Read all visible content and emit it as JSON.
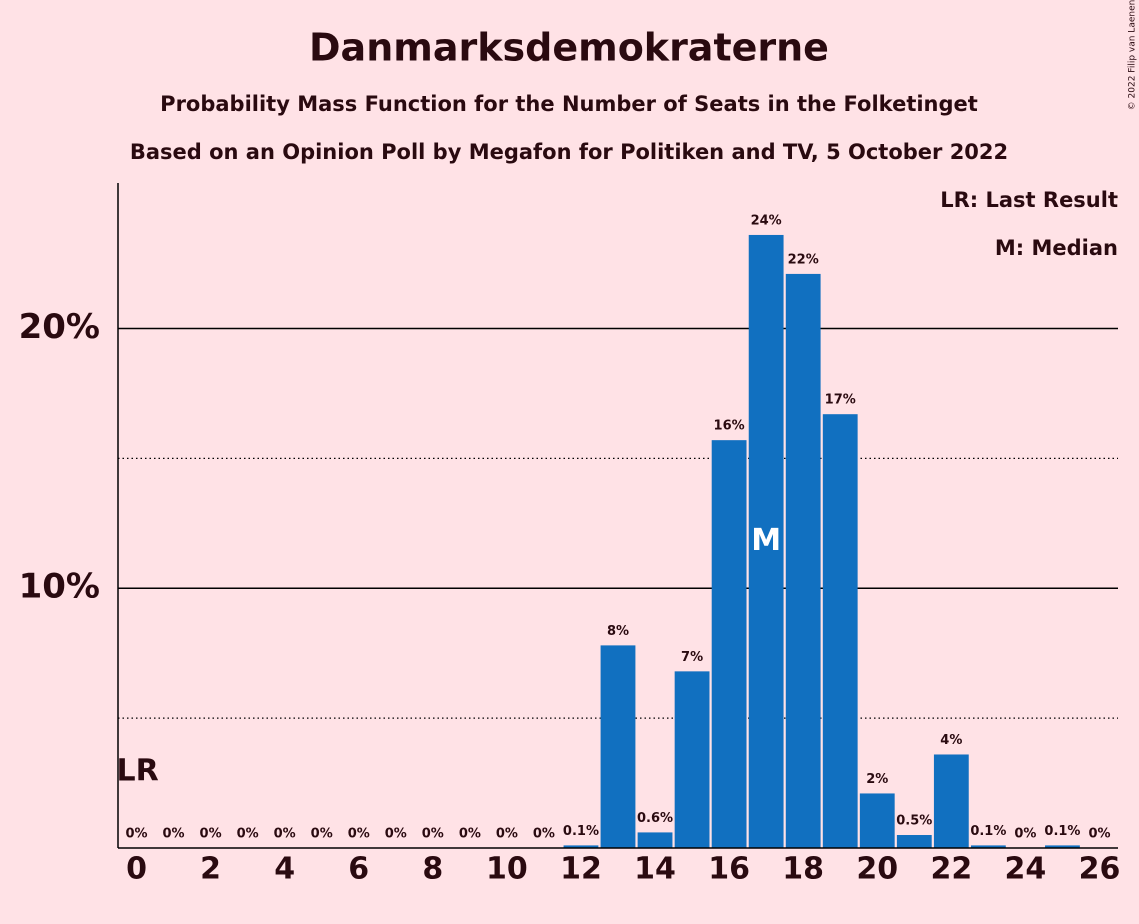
{
  "chart_data": {
    "type": "bar",
    "title": "Danmarksdemokraterne",
    "subtitle": [
      "Probability Mass Function for the Number of Seats in the Folketinget",
      "Based on an Opinion Poll by Megafon for Politiken and TV, 5 October 2022"
    ],
    "copyright": "© 2022 Filip van Laenen",
    "x": [
      0,
      1,
      2,
      3,
      4,
      5,
      6,
      7,
      8,
      9,
      10,
      11,
      12,
      13,
      14,
      15,
      16,
      17,
      18,
      19,
      20,
      21,
      22,
      23,
      24,
      25,
      26
    ],
    "values": [
      0,
      0,
      0,
      0,
      0,
      0,
      0,
      0,
      0,
      0,
      0,
      0,
      0.1,
      7.8,
      0.6,
      6.8,
      15.7,
      23.6,
      22.1,
      16.7,
      2.1,
      0.5,
      3.6,
      0.1,
      0,
      0.1,
      0
    ],
    "value_labels": [
      "0%",
      "0%",
      "0%",
      "0%",
      "0%",
      "0%",
      "0%",
      "0%",
      "0%",
      "0%",
      "0%",
      "0%",
      "0.1%",
      "8%",
      "0.6%",
      "7%",
      "16%",
      "24%",
      "22%",
      "17%",
      "2%",
      "0.5%",
      "4%",
      "0.1%",
      "0%",
      "0.1%",
      "0%"
    ],
    "color": "#1170c0",
    "xlim": [
      -0.5,
      26.5
    ],
    "xticks": [
      0,
      2,
      4,
      6,
      8,
      10,
      12,
      14,
      16,
      18,
      20,
      22,
      24,
      26
    ],
    "ylim": [
      0,
      25.6
    ],
    "yticks": [
      {
        "value": 10,
        "label": "10%"
      },
      {
        "value": 20,
        "label": "20%"
      }
    ],
    "yticks_minor": [
      5,
      15
    ],
    "grid": true,
    "annotations": [
      {
        "text": "LR",
        "x": 0
      },
      {
        "text": "M",
        "x": 17
      }
    ],
    "legend": [
      "LR: Last Result",
      "M: Median"
    ]
  }
}
